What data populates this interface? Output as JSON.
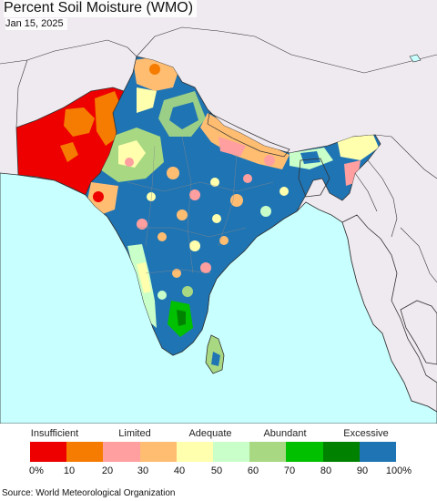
{
  "header": {
    "title": "Percent Soil Moisture (WMO)",
    "date": "Jan 15, 2025"
  },
  "map": {
    "region": "South Asia",
    "ocean_color": "#c8ffff",
    "land_outside_color": "#efeaf0"
  },
  "legend": {
    "categories": [
      "Insufficient",
      "Limited",
      "Adequate",
      "Abundant",
      "Excessive"
    ],
    "tick_labels": [
      "0%",
      "10",
      "20",
      "30",
      "40",
      "50",
      "60",
      "70",
      "80",
      "90",
      "100%"
    ],
    "colors": [
      "#ee0000",
      "#f57c00",
      "#ff9f9f",
      "#ffbd72",
      "#ffffad",
      "#c9ffc9",
      "#a8d982",
      "#00c000",
      "#008200",
      "#1f74b4"
    ]
  },
  "footer": {
    "source": "Source: World Meteorological Organization"
  }
}
